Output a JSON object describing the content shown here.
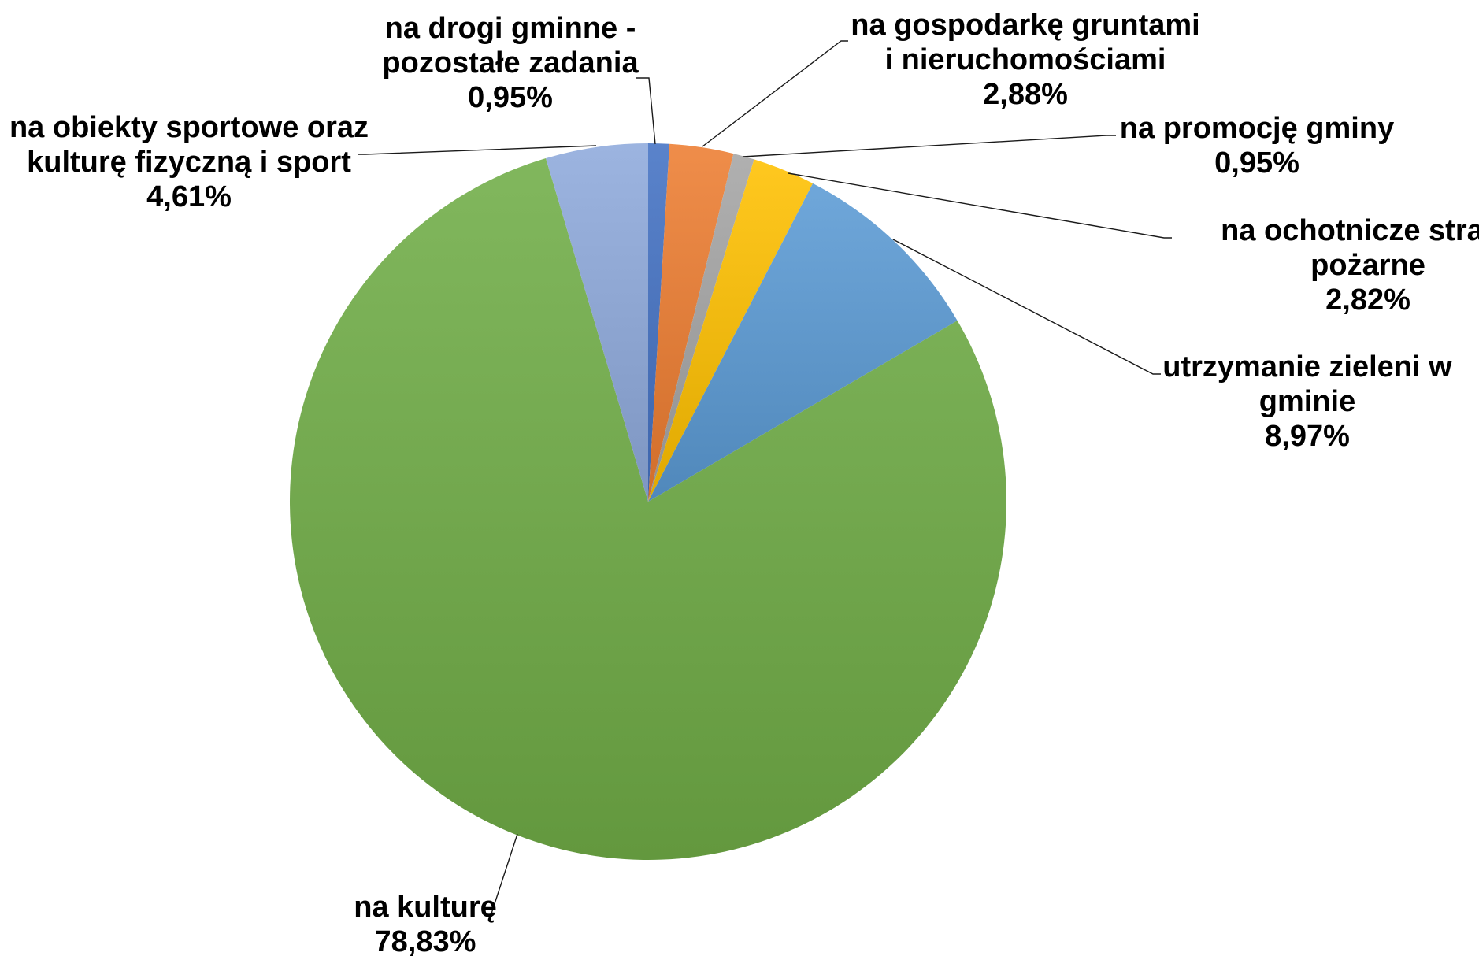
{
  "chart_data": {
    "type": "pie",
    "title": "",
    "start_angle_deg": 0,
    "direction": "clockwise",
    "slices": [
      {
        "name": "na drogi gminne - pozostałe zadania",
        "label_lines": [
          "na drogi gminne -",
          "pozostałe zadania"
        ],
        "percent_label": "0,95%",
        "value": 0.95,
        "color": "#4472C4"
      },
      {
        "name": "na gospodarkę gruntami i nieruchomościami",
        "label_lines": [
          "na gospodarkę gruntami",
          "i nieruchomościami"
        ],
        "percent_label": "2,88%",
        "value": 2.88,
        "color": "#ED7D31"
      },
      {
        "name": "na promocję gminy",
        "label_lines": [
          "na promocję gminy"
        ],
        "percent_label": "0,95%",
        "value": 0.95,
        "color": "#A5A5A5"
      },
      {
        "name": "na ochotnicze straże pożarne",
        "label_lines": [
          "na ochotnicze straże",
          "pożarne"
        ],
        "percent_label": "2,82%",
        "value": 2.82,
        "color": "#FFC000"
      },
      {
        "name": "utrzymanie zieleni w gminie",
        "label_lines": [
          "utrzymanie zieleni w",
          "gminie"
        ],
        "percent_label": "8,97%",
        "value": 8.97,
        "color": "#5B9BD5"
      },
      {
        "name": "na kulturę",
        "label_lines": [
          "na kulturę"
        ],
        "percent_label": "78,83%",
        "value": 78.83,
        "color": "#70AD47"
      },
      {
        "name": "na obiekty sportowe oraz kulturę fizyczną i sport",
        "label_lines": [
          "na obiekty sportowe oraz",
          "kulturę fizyczną i sport"
        ],
        "percent_label": "4,61%",
        "value": 4.61,
        "color": "#8FAADC"
      }
    ]
  }
}
